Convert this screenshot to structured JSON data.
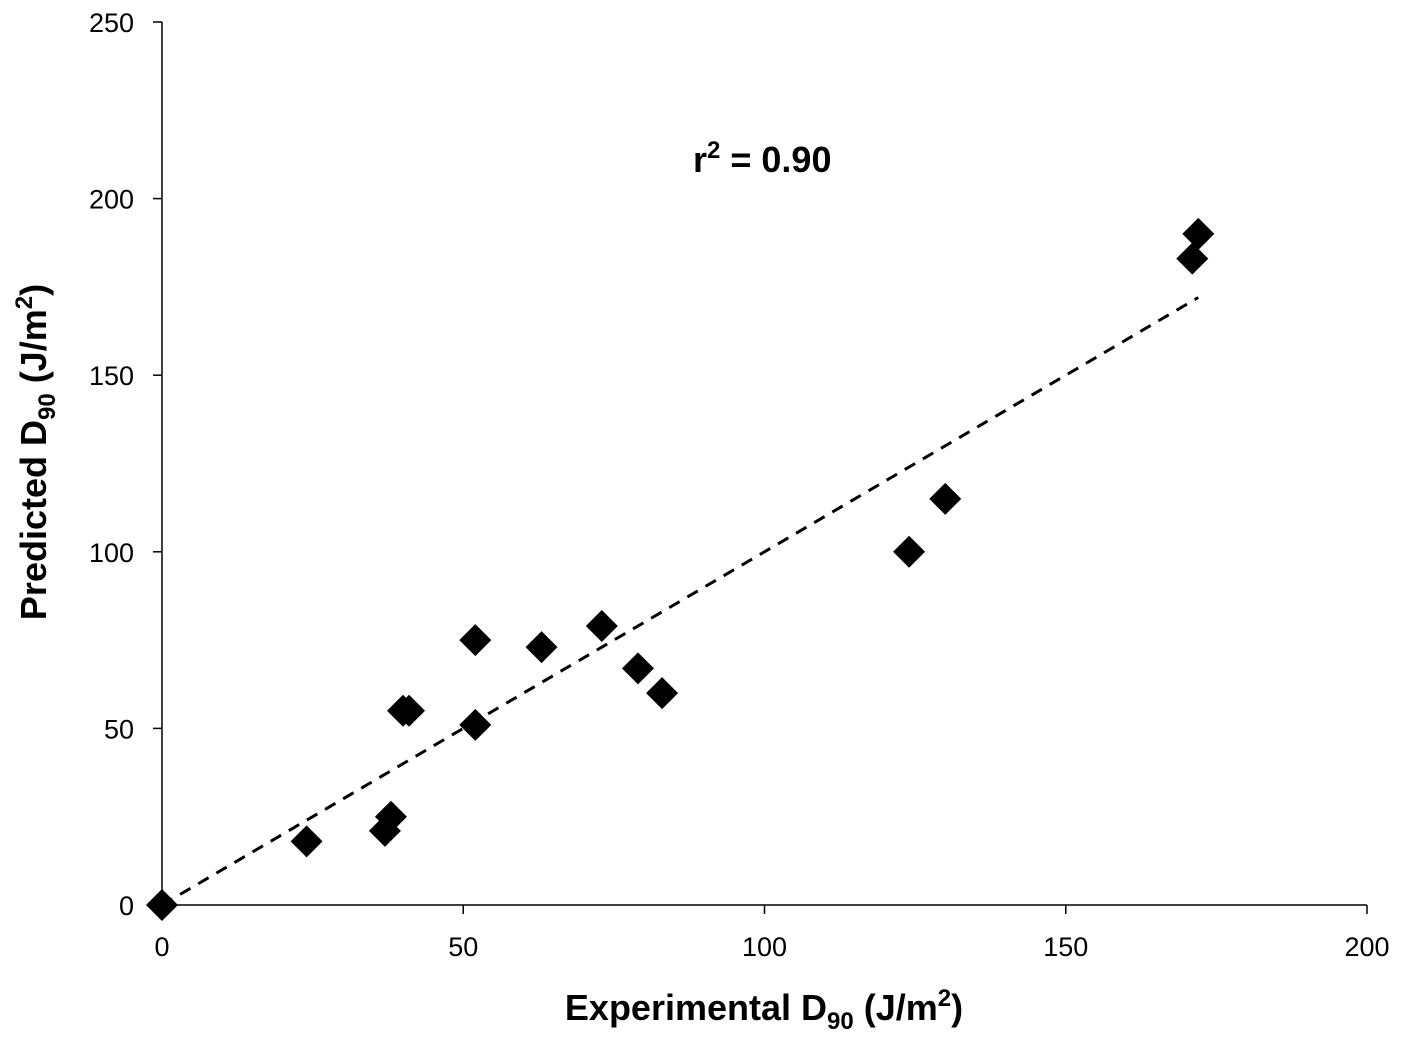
{
  "chart_data": {
    "type": "scatter",
    "title": "",
    "xlabel": "Experimental D90 (J/m2)",
    "ylabel": "Predicted D90 (J/m2)",
    "xlabel_parts": {
      "pre": "Experimental D",
      "sub": "90",
      "mid": " (J/m",
      "sup": "2",
      "post": ")"
    },
    "ylabel_parts": {
      "pre": "Predicted D",
      "sub": "90",
      "mid": " (J/m",
      "sup": "2",
      "post": ")"
    },
    "xlim": [
      0,
      200
    ],
    "ylim": [
      0,
      250
    ],
    "x_ticks": [
      0,
      50,
      100,
      150,
      200
    ],
    "y_ticks": [
      0,
      50,
      100,
      150,
      200,
      250
    ],
    "x_tick_labels": [
      "0",
      "50",
      "100",
      "150",
      "200"
    ],
    "y_tick_labels": [
      "0",
      "50",
      "100",
      "150",
      "200",
      "250"
    ],
    "grid": false,
    "legend": false,
    "annotation": {
      "pre": "r",
      "sup": "2",
      "post": " = 0.90"
    },
    "series": [
      {
        "marker": "diamond",
        "color": "#000000",
        "points": [
          {
            "x": 0,
            "y": 0
          },
          {
            "x": 24,
            "y": 18
          },
          {
            "x": 37,
            "y": 21
          },
          {
            "x": 38,
            "y": 25
          },
          {
            "x": 40,
            "y": 55
          },
          {
            "x": 41,
            "y": 55
          },
          {
            "x": 52,
            "y": 75
          },
          {
            "x": 52,
            "y": 51
          },
          {
            "x": 63,
            "y": 73
          },
          {
            "x": 73,
            "y": 79
          },
          {
            "x": 79,
            "y": 67
          },
          {
            "x": 83,
            "y": 60
          },
          {
            "x": 124,
            "y": 100
          },
          {
            "x": 130,
            "y": 115
          },
          {
            "x": 171,
            "y": 183
          },
          {
            "x": 172,
            "y": 190
          }
        ]
      }
    ],
    "trendline": {
      "style": "dashed",
      "color": "#000000",
      "x": [
        0,
        172
      ],
      "y": [
        0,
        172
      ]
    }
  }
}
